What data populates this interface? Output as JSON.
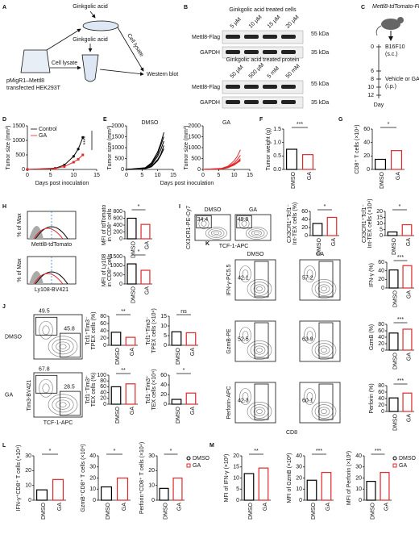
{
  "panel_labels": [
    "A",
    "B",
    "C",
    "D",
    "E",
    "F",
    "G",
    "H",
    "I",
    "J",
    "K",
    "L",
    "M"
  ],
  "A": {
    "reagent": [
      "Ginkgolic acid",
      "Ginkgolic acid"
    ],
    "lysate": [
      "Cell lysate",
      "Cell lysate"
    ],
    "readout": "Western blot",
    "cells": [
      "pMigR1–Mettl8",
      "transfected HEK293T"
    ]
  },
  "B": {
    "blots": [
      {
        "title": "Ginkgolic acid treated cells",
        "lanes": [
          "5 μM",
          "10 μM",
          "15 μM",
          "20 μM"
        ],
        "rows": [
          "Mettl8-Flag",
          "GAPDH"
        ],
        "markers": [
          "55 kDa",
          "35 kDa"
        ]
      },
      {
        "title": "Ginkgolic acid treated protein",
        "lanes": [
          "50 μM",
          "500 μM",
          "5 mM",
          "50 mM"
        ],
        "rows": [
          "Mettl8-Flag",
          "GAPDH"
        ],
        "markers": [
          "55 kDa",
          "35 kDa"
        ]
      }
    ]
  },
  "C": {
    "title": "Mettl8-tdTomato-Flag",
    "inoculation": [
      "B16F10",
      "(s.c.)"
    ],
    "treatment": [
      "Vehicle or GA",
      "(i.p.)"
    ],
    "days": [
      0,
      6,
      8,
      10,
      12
    ],
    "axis": "Day"
  },
  "D": {
    "type": "line",
    "ylabel": "Tumor size (mm³)",
    "xlabel": "Days post inoculation",
    "x": [
      0,
      6,
      8,
      10,
      11,
      12
    ],
    "series": [
      {
        "name": "Control",
        "color": "#000000",
        "values": [
          0,
          40,
          150,
          450,
          700,
          1100
        ]
      },
      {
        "name": "GA",
        "color": "#e0282a",
        "values": [
          0,
          30,
          100,
          250,
          350,
          500
        ]
      }
    ],
    "xlim": [
      0,
      15
    ],
    "xticks": [
      0,
      5,
      10,
      15
    ],
    "ylim": [
      0,
      1500
    ],
    "yticks": [
      0,
      500,
      1000,
      1500
    ],
    "significance": "****"
  },
  "E": {
    "type": "line",
    "xlabel": "Days post inoculation",
    "x": [
      0,
      6,
      8,
      10,
      11,
      12
    ],
    "groups": [
      {
        "name": "DMSO",
        "color": "#000000",
        "ylabel": "Tumor size (mm³)",
        "series": [
          [
            0,
            50,
            200,
            600,
            900,
            1300
          ],
          [
            0,
            40,
            150,
            450,
            700,
            1100
          ],
          [
            0,
            60,
            250,
            700,
            1100,
            1500
          ],
          [
            0,
            30,
            120,
            400,
            650,
            950
          ],
          [
            0,
            80,
            300,
            800,
            1200,
            1700
          ]
        ]
      },
      {
        "name": "GA",
        "color": "#e0282a",
        "ylabel": "Tumor size (mm³)",
        "series": [
          [
            0,
            30,
            100,
            250,
            350,
            500
          ],
          [
            0,
            20,
            80,
            200,
            300,
            400
          ],
          [
            0,
            50,
            150,
            400,
            600,
            900
          ],
          [
            0,
            40,
            120,
            300,
            450,
            650
          ],
          [
            0,
            30,
            90,
            220,
            330,
            450
          ]
        ]
      }
    ],
    "xlim": [
      0,
      15
    ],
    "xticks": [
      0,
      5,
      10,
      15
    ],
    "ylim": [
      0,
      2000
    ],
    "yticks": [
      0,
      500,
      1000,
      1500,
      2000
    ]
  },
  "H": {
    "ylabel": [
      "% of Max",
      "% of Max"
    ],
    "markers": [
      "Mettl8-tdTomato",
      "Ly108-BV421"
    ]
  },
  "I": {
    "groups": [
      "DMSO",
      "GA"
    ],
    "gates": [
      34.4,
      49.8
    ],
    "ylabel": "CX3CR1-PE-Cy7",
    "xlabel": "TCF-1-APC"
  },
  "J": {
    "groups": [
      "DMSO",
      "GA"
    ],
    "gates": [
      [
        49.5,
        45.8
      ],
      [
        67.8,
        28.5
      ]
    ],
    "ylabel": "Tim3-BV421",
    "xlabel": "TCF-1-APC"
  },
  "K": {
    "groups": [
      "DMSO",
      "GA"
    ],
    "rows": [
      {
        "ylabel": "IFN-γ-PC5.5",
        "gates": [
          42.1,
          57.2
        ]
      },
      {
        "ylabel": "GzmB-PE",
        "gates": [
          52.5,
          63.9
        ]
      },
      {
        "ylabel": "Perforin-APC",
        "gates": [
          42.3,
          60.1
        ]
      }
    ],
    "xlabel": "CD8"
  },
  "L": {
    "legend": [
      "DMSO",
      "GA"
    ]
  },
  "M": {
    "legend": [
      "DMSO",
      "GA"
    ]
  },
  "bar_colors": [
    "#000000",
    "#e0282a"
  ],
  "bar_charts": [
    {
      "type": "bar",
      "ylabel": [
        "Tumor weight (g)"
      ],
      "categories": [
        "DMSO",
        "GA"
      ],
      "values": [
        0.75,
        0.55
      ],
      "ylim": [
        0,
        1.5
      ],
      "yticks": [
        {
          "value": 0,
          "label": "0.0"
        },
        0.5,
        {
          "value": 1,
          "label": "1.0"
        },
        1.5
      ],
      "significance": "***"
    },
    {
      "type": "bar",
      "ylabel": [
        "CD8⁺ T cells (×10⁴)"
      ],
      "categories": [
        "DMSO",
        "GA"
      ],
      "values": [
        15,
        28
      ],
      "ylim": [
        0,
        60
      ],
      "yticks": [
        0,
        20,
        40,
        60
      ],
      "significance": "*"
    },
    {
      "type": "bar",
      "ylabel": [
        "MFI of tdTomato",
        "in CD8⁺ cells"
      ],
      "categories": [
        "DMSO",
        "GA"
      ],
      "values": [
        600,
        420
      ],
      "ylim": [
        0,
        800
      ],
      "yticks": [
        0,
        200,
        400,
        600,
        800
      ],
      "significance": "*"
    },
    {
      "type": "bar",
      "ylabel": [
        "MFI of Ly108",
        "in CD8⁺ cells"
      ],
      "categories": [
        "DMSO",
        "GA"
      ],
      "values": [
        1100,
        750
      ],
      "ylim": [
        0,
        1500
      ],
      "yticks": [
        0,
        500,
        1000,
        1500
      ],
      "significance": "*"
    },
    {
      "type": "bar",
      "ylabel": [
        "CX3CR1⁺Tcf1⁻",
        "Int-TEX cells (%)"
      ],
      "categories": [
        "DMSO",
        "GA"
      ],
      "values": [
        30,
        45
      ],
      "ylim": [
        0,
        60
      ],
      "yticks": [
        0,
        20,
        40,
        60
      ],
      "significance": "*"
    },
    {
      "type": "bar",
      "ylabel": [
        "CX3CR1⁺Tcf1⁻",
        "Int-TEX cells (×10⁴)"
      ],
      "categories": [
        "DMSO",
        "GA"
      ],
      "values": [
        3,
        9
      ],
      "ylim": [
        0,
        20
      ],
      "yticks": [
        0,
        5,
        10,
        15,
        20
      ],
      "significance": "*"
    },
    {
      "type": "bar",
      "ylabel": [
        "Tcf1⁺Tim3⁻",
        "TPEX cells (%)"
      ],
      "categories": [
        "DMSO",
        "GA"
      ],
      "values": [
        36,
        22
      ],
      "ylim": [
        0,
        80
      ],
      "yticks": [
        0,
        20,
        40,
        60,
        80
      ],
      "significance": "**"
    },
    {
      "type": "bar",
      "ylabel": [
        "Tcf1⁺Tim3⁻",
        "TPEX cells (×10⁴)"
      ],
      "categories": [
        "DMSO",
        "GA"
      ],
      "values": [
        7,
        6.5
      ],
      "ylim": [
        0,
        15
      ],
      "yticks": [
        0,
        5,
        10,
        15
      ],
      "significance": "ns"
    },
    {
      "type": "bar",
      "ylabel": [
        "Tcf1⁻Tim3⁺",
        "TEX cells (%)"
      ],
      "categories": [
        "DMSO",
        "GA"
      ],
      "values": [
        60,
        70
      ],
      "ylim": [
        0,
        100
      ],
      "yticks": [
        0,
        20,
        40,
        60,
        80,
        100
      ],
      "significance": "**"
    },
    {
      "type": "bar",
      "ylabel": [
        "Tcf1⁻Tim3⁺",
        "TEX cells (×10⁴)"
      ],
      "categories": [
        "DMSO",
        "GA"
      ],
      "values": [
        10,
        23
      ],
      "ylim": [
        0,
        60
      ],
      "yticks": [
        0,
        20,
        40,
        60
      ],
      "significance": "*"
    },
    {
      "type": "bar",
      "ylabel": [
        "IFN-γ (%)"
      ],
      "categories": [
        "DMSO",
        "GA"
      ],
      "values": [
        42,
        52
      ],
      "ylim": [
        0,
        60
      ],
      "yticks": [
        0,
        20,
        40,
        60
      ],
      "significance": "***"
    },
    {
      "type": "bar",
      "ylabel": [
        "GzmB (%)"
      ],
      "categories": [
        "DMSO",
        "GA"
      ],
      "values": [
        53,
        65
      ],
      "ylim": [
        0,
        80
      ],
      "yticks": [
        0,
        20,
        40,
        60,
        80
      ],
      "significance": "***"
    },
    {
      "type": "bar",
      "ylabel": [
        "Perforin (%)"
      ],
      "categories": [
        "DMSO",
        "GA"
      ],
      "values": [
        42,
        57
      ],
      "ylim": [
        0,
        80
      ],
      "yticks": [
        0,
        20,
        40,
        60,
        80
      ],
      "significance": "***"
    },
    {
      "type": "bar",
      "ylabel": [
        "IFN-γ⁺CD8⁺ T cells (×10⁴)"
      ],
      "categories": [
        "DMSO",
        "GA"
      ],
      "values": [
        7,
        14
      ],
      "ylim": [
        0,
        30
      ],
      "yticks": [
        0,
        10,
        20,
        30
      ],
      "significance": "*"
    },
    {
      "type": "bar",
      "ylabel": [
        "GzmB⁺CD8⁺ T cells (×10⁴)"
      ],
      "categories": [
        "DMSO",
        "GA"
      ],
      "values": [
        12,
        20
      ],
      "ylim": [
        0,
        40
      ],
      "yticks": [
        0,
        10,
        20,
        30,
        40
      ],
      "significance": "*"
    },
    {
      "type": "bar",
      "ylabel": [
        "Perforin⁺CD8⁺ T cells (×10⁴)"
      ],
      "categories": [
        "DMSO",
        "GA"
      ],
      "values": [
        8,
        15
      ],
      "ylim": [
        0,
        30
      ],
      "yticks": [
        0,
        10,
        20,
        30
      ],
      "significance": "*"
    },
    {
      "type": "bar",
      "ylabel": [
        "MFI of IFN-γ (×10²)"
      ],
      "categories": [
        "DMSO",
        "GA"
      ],
      "values": [
        12,
        14.5
      ],
      "ylim": [
        0,
        20
      ],
      "yticks": [
        0,
        5,
        10,
        15,
        20
      ],
      "significance": "**"
    },
    {
      "type": "bar",
      "ylabel": [
        "MFI of GzmB (×10²)"
      ],
      "categories": [
        "DMSO",
        "GA"
      ],
      "values": [
        18,
        25
      ],
      "ylim": [
        0,
        40
      ],
      "yticks": [
        0,
        10,
        20,
        30,
        40
      ],
      "significance": "***"
    },
    {
      "type": "bar",
      "ylabel": [
        "MFI of Perforin (×10²)"
      ],
      "categories": [
        "DMSO",
        "GA"
      ],
      "values": [
        17,
        25
      ],
      "ylim": [
        0,
        40
      ],
      "yticks": [
        0,
        10,
        20,
        30,
        40
      ],
      "significance": "***"
    }
  ]
}
